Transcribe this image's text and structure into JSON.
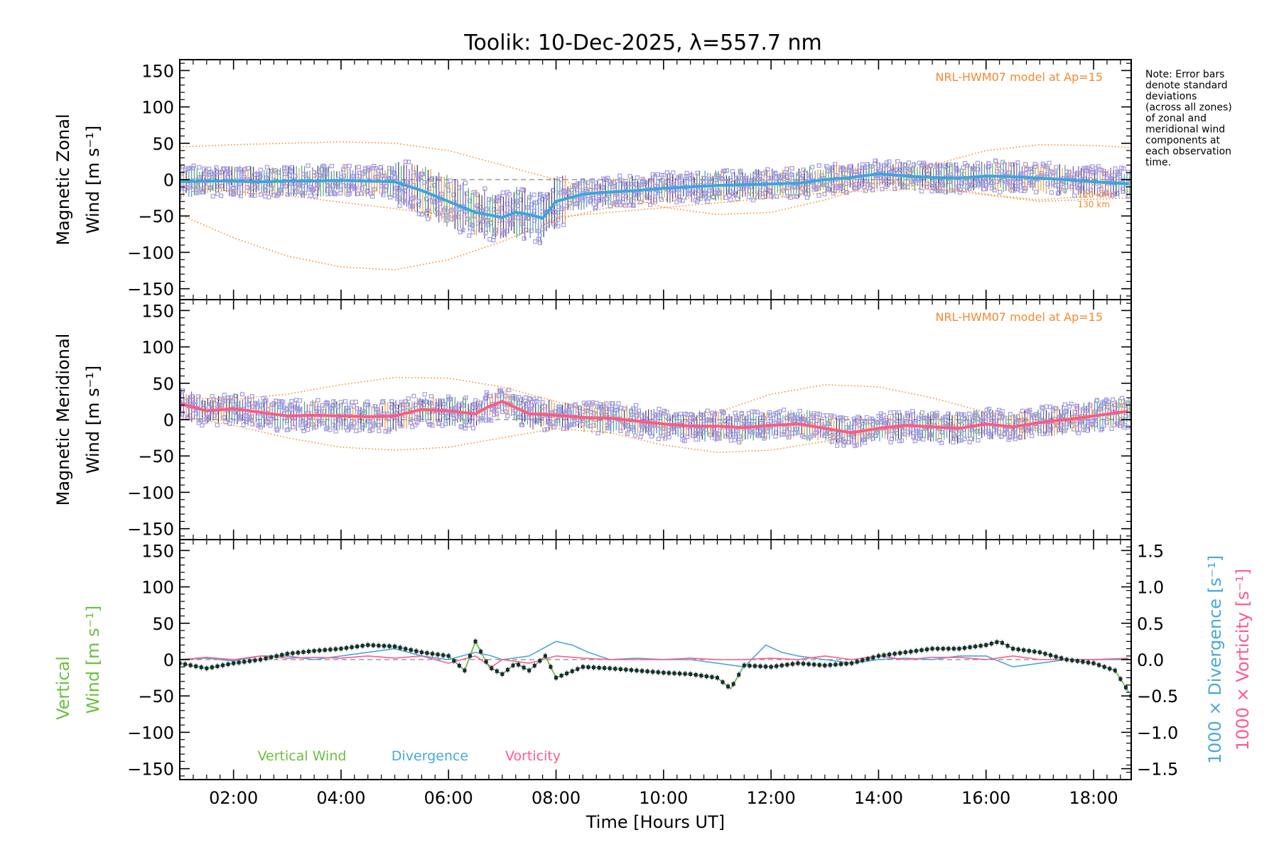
{
  "title": "Toolik: 10-Dec-2025, λ=557.7 nm",
  "note": [
    "Note: Error bars",
    "denote standard",
    "deviations",
    "(across all zones)",
    "of zonal and",
    "meridional wind",
    "components at",
    "each observation",
    "time."
  ],
  "colors": {
    "model": "#f28a30",
    "zonal": "#3aa6dc",
    "meridional": "#ff5a7e",
    "vertical_line": "#6cc040",
    "divergence": "#4aa8da",
    "vorticity": "#ff5a8a",
    "scatter": "#a79be0",
    "axis": "#000000"
  },
  "chart_data": [
    {
      "type": "line",
      "id": "zonal",
      "ylabel_line1": "Magnetic Zonal",
      "ylabel_line2": "Wind [m s⁻¹]",
      "model_label": "NRL-HWM07 model at Ap=15",
      "altitude_labels": [
        "120 km",
        "130 km"
      ],
      "xlim": [
        1.0,
        18.7
      ],
      "ylim": [
        -165,
        165
      ],
      "yticks": [
        -150,
        -100,
        -50,
        0,
        50,
        100,
        150
      ],
      "ytick_labels": [
        "−150",
        "−100",
        "−50",
        "0",
        "50",
        "100",
        "150"
      ],
      "series": [
        {
          "name": "Zonal wind",
          "x": [
            1.0,
            1.5,
            2.0,
            2.5,
            3.0,
            3.5,
            4.0,
            4.5,
            5.0,
            5.5,
            6.0,
            6.5,
            7.0,
            7.25,
            7.5,
            7.75,
            8.0,
            8.5,
            9.0,
            9.5,
            10.0,
            10.5,
            11.0,
            11.5,
            12.0,
            12.5,
            13.0,
            13.5,
            14.0,
            14.5,
            15.0,
            15.5,
            16.0,
            16.5,
            17.0,
            17.5,
            18.0,
            18.7
          ],
          "y": [
            -3,
            -2,
            -2,
            -3,
            -2,
            -2,
            -1,
            -2,
            -3,
            -15,
            -30,
            -45,
            -52,
            -45,
            -48,
            -53,
            -30,
            -20,
            -17,
            -15,
            -12,
            -10,
            -8,
            -7,
            -6,
            -5,
            0,
            3,
            8,
            5,
            3,
            2,
            5,
            4,
            2,
            0,
            -3,
            -6
          ]
        },
        {
          "name": "HWM07 upper",
          "x": [
            1,
            2,
            3,
            4,
            5,
            6,
            7,
            8,
            9,
            10,
            11,
            12,
            13,
            14,
            15,
            16,
            17,
            18,
            18.7
          ],
          "y": [
            45,
            48,
            50,
            52,
            50,
            40,
            20,
            0,
            -18,
            -38,
            -48,
            -45,
            -28,
            -5,
            20,
            40,
            48,
            47,
            44
          ]
        },
        {
          "name": "HWM07 lower",
          "x": [
            1,
            2,
            3,
            4,
            5,
            6,
            7,
            8,
            9,
            10,
            11,
            12,
            13,
            14,
            15,
            16,
            17,
            18,
            18.7
          ],
          "y": [
            -48,
            -80,
            -105,
            -120,
            -124,
            -110,
            -85,
            -55,
            -38,
            -28,
            -22,
            -16,
            -8,
            -4,
            -8,
            -20,
            -28,
            -22,
            -15
          ]
        },
        {
          "name": "HWM07 alt",
          "x": [
            1,
            3,
            5,
            7,
            9,
            11,
            13,
            15,
            17,
            18.7
          ],
          "y": [
            -10,
            -22,
            -40,
            -58,
            -45,
            -32,
            -18,
            -12,
            -30,
            -25
          ]
        }
      ]
    },
    {
      "type": "line",
      "id": "meridional",
      "ylabel_line1": "Magnetic Meridional",
      "ylabel_line2": "Wind [m s⁻¹]",
      "model_label": "NRL-HWM07 model at Ap=15",
      "xlim": [
        1.0,
        18.7
      ],
      "ylim": [
        -165,
        165
      ],
      "yticks": [
        -150,
        -100,
        -50,
        0,
        50,
        100,
        150
      ],
      "ytick_labels": [
        "−150",
        "−100",
        "−50",
        "0",
        "50",
        "100",
        "150"
      ],
      "series": [
        {
          "name": "Meridional wind",
          "x": [
            1.0,
            1.5,
            2.0,
            2.5,
            3.0,
            3.5,
            4.0,
            4.5,
            5.0,
            5.5,
            6.0,
            6.5,
            6.75,
            7.0,
            7.5,
            8.0,
            8.5,
            9.0,
            9.5,
            10.0,
            10.5,
            11.0,
            11.5,
            12.0,
            12.5,
            13.0,
            13.5,
            14.0,
            14.5,
            15.0,
            15.5,
            16.0,
            16.5,
            17.0,
            17.5,
            18.0,
            18.7
          ],
          "y": [
            22,
            12,
            15,
            10,
            5,
            6,
            5,
            4,
            5,
            14,
            12,
            8,
            18,
            25,
            8,
            6,
            3,
            2,
            -2,
            -6,
            -9,
            -9,
            -11,
            -8,
            -6,
            -12,
            -18,
            -12,
            -8,
            -10,
            -12,
            -6,
            -10,
            -4,
            0,
            5,
            12
          ]
        },
        {
          "name": "HWM07 upper",
          "x": [
            1,
            2,
            3,
            4,
            5,
            6,
            7,
            8,
            9,
            10,
            11,
            12,
            13,
            14,
            15,
            16,
            17,
            18,
            18.7
          ],
          "y": [
            30,
            28,
            35,
            48,
            58,
            57,
            45,
            25,
            5,
            -10,
            10,
            35,
            48,
            45,
            30,
            10,
            -5,
            10,
            25
          ]
        },
        {
          "name": "HWM07 lower",
          "x": [
            1,
            2,
            3,
            4,
            5,
            6,
            7,
            8,
            9,
            10,
            11,
            12,
            13,
            14,
            15,
            16,
            17,
            18,
            18.7
          ],
          "y": [
            5,
            -8,
            -25,
            -38,
            -42,
            -38,
            -25,
            -12,
            -18,
            -35,
            -45,
            -42,
            -30,
            -15,
            -5,
            -8,
            -15,
            5,
            15
          ]
        }
      ]
    },
    {
      "type": "line",
      "id": "vertical",
      "ylabel_line1": "Vertical",
      "ylabel_line2": "Wind [m s⁻¹]",
      "right_label1": "1000 × Divergence [s⁻¹]",
      "right_label2": "1000 × Vorticity [s⁻¹]",
      "legend": [
        "Vertical Wind",
        "Divergence",
        "Vorticity"
      ],
      "xlim": [
        1.0,
        18.7
      ],
      "ylim": [
        -165,
        165
      ],
      "yticks": [
        -150,
        -100,
        -50,
        0,
        50,
        100,
        150
      ],
      "ytick_labels": [
        "−150",
        "−100",
        "−50",
        "0",
        "50",
        "100",
        "150"
      ],
      "ylim_right": [
        -1.65,
        1.65
      ],
      "yticks_right": [
        -1.5,
        -1.0,
        -0.5,
        0.0,
        0.5,
        1.0,
        1.5
      ],
      "ytick_labels_right": [
        "−1.5",
        "−1.0",
        "−0.5",
        "0.0",
        "0.5",
        "1.0",
        "1.5"
      ],
      "xticks": [
        2,
        4,
        6,
        8,
        10,
        12,
        14,
        16,
        18
      ],
      "xtick_labels": [
        "02:00",
        "04:00",
        "06:00",
        "08:00",
        "10:00",
        "12:00",
        "14:00",
        "16:00",
        "18:00"
      ],
      "xlabel": "Time [Hours UT]",
      "series": [
        {
          "name": "Vertical Wind",
          "x": [
            1.0,
            1.5,
            2.0,
            2.5,
            3.0,
            3.5,
            4.0,
            4.5,
            5.0,
            5.5,
            6.0,
            6.3,
            6.5,
            6.75,
            7.0,
            7.25,
            7.5,
            7.8,
            8.0,
            8.5,
            9.0,
            9.5,
            10.0,
            10.5,
            11.0,
            11.25,
            11.5,
            12.0,
            12.5,
            13.0,
            13.5,
            14.0,
            14.5,
            15.0,
            15.5,
            16.0,
            16.25,
            16.5,
            17.0,
            17.5,
            18.0,
            18.4,
            18.7
          ],
          "y": [
            -5,
            -12,
            -5,
            0,
            8,
            12,
            15,
            20,
            18,
            10,
            5,
            -15,
            25,
            -10,
            -20,
            -5,
            -15,
            5,
            -25,
            -10,
            -12,
            -15,
            -18,
            -20,
            -25,
            -40,
            -8,
            -10,
            -5,
            -8,
            -5,
            5,
            10,
            15,
            15,
            20,
            25,
            15,
            10,
            0,
            -5,
            -15,
            -50
          ]
        },
        {
          "name": "Divergence",
          "x": [
            1.0,
            1.5,
            2.0,
            2.5,
            3.0,
            3.5,
            4.0,
            4.5,
            5.0,
            5.5,
            6.0,
            6.5,
            6.8,
            7.0,
            7.5,
            8.0,
            8.3,
            8.6,
            9.0,
            9.5,
            10.0,
            10.5,
            11.0,
            11.5,
            11.9,
            12.2,
            12.5,
            13.0,
            13.5,
            14.0,
            14.5,
            15.0,
            15.5,
            16.0,
            16.5,
            17.0,
            17.5,
            18.0,
            18.7
          ],
          "y": [
            0.0,
            0.02,
            -0.02,
            0.05,
            0.05,
            0.0,
            0.05,
            0.1,
            0.15,
            0.05,
            0.0,
            0.1,
            0.05,
            0.0,
            0.05,
            0.25,
            0.2,
            0.1,
            0.0,
            0.02,
            0.0,
            0.0,
            -0.05,
            -0.1,
            0.2,
            0.1,
            0.05,
            0.0,
            -0.05,
            0.0,
            0.02,
            0.0,
            0.05,
            0.05,
            -0.1,
            -0.05,
            0.0,
            0.0,
            0.0
          ]
        },
        {
          "name": "Vorticity",
          "x": [
            1.0,
            1.5,
            2.0,
            2.5,
            3.0,
            3.5,
            4.0,
            4.5,
            5.0,
            5.5,
            6.0,
            6.5,
            6.8,
            7.0,
            7.5,
            8.0,
            8.5,
            9.0,
            9.5,
            10.0,
            10.5,
            11.0,
            11.5,
            12.0,
            12.5,
            13.0,
            13.5,
            14.0,
            14.5,
            15.0,
            15.5,
            16.0,
            16.5,
            17.0,
            17.5,
            18.0,
            18.7
          ],
          "y": [
            0.0,
            0.03,
            0.0,
            0.05,
            0.02,
            0.03,
            0.02,
            0.05,
            0.02,
            0.05,
            -0.05,
            0.05,
            -0.1,
            0.0,
            -0.05,
            0.05,
            0.02,
            0.0,
            0.0,
            0.0,
            0.02,
            0.0,
            0.0,
            0.02,
            0.0,
            0.05,
            0.0,
            0.05,
            0.0,
            0.03,
            0.03,
            0.0,
            0.05,
            0.0,
            0.0,
            0.0,
            0.02
          ]
        }
      ]
    }
  ]
}
